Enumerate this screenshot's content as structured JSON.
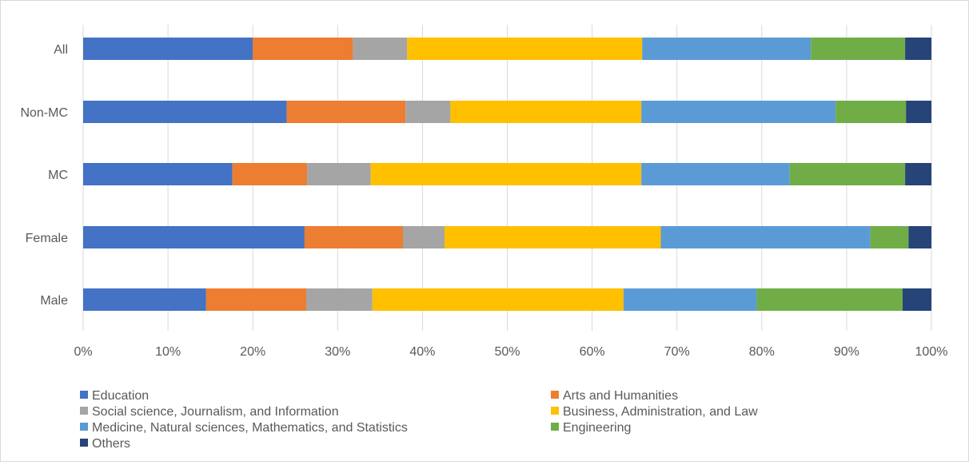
{
  "chart_data": {
    "type": "bar",
    "orientation": "horizontal",
    "stacked": "percent",
    "categories": [
      "All",
      "Non-MC",
      "MC",
      "Female",
      "Male"
    ],
    "series": [
      {
        "name": "Education",
        "color": "#4472C4",
        "values": [
          20.0,
          24.0,
          17.6,
          26.1,
          14.5
        ]
      },
      {
        "name": "Arts and Humanities",
        "color": "#ED7D31",
        "values": [
          11.8,
          14.0,
          8.8,
          11.6,
          11.8
        ]
      },
      {
        "name": "Social science, Journalism, and Information",
        "color": "#A5A5A5",
        "values": [
          6.4,
          5.3,
          7.5,
          4.9,
          7.8
        ]
      },
      {
        "name": "Business, Administration, and Law",
        "color": "#FFC000",
        "values": [
          27.7,
          22.5,
          31.9,
          25.5,
          29.6
        ]
      },
      {
        "name": "Medicine, Natural sciences, Mathematics, and Statistics",
        "color": "#5B9BD5",
        "values": [
          19.9,
          22.9,
          17.5,
          24.7,
          15.7
        ]
      },
      {
        "name": "Engineering",
        "color": "#70AD47",
        "values": [
          11.1,
          8.3,
          13.6,
          4.5,
          17.2
        ]
      },
      {
        "name": "Others",
        "color": "#264478",
        "values": [
          3.1,
          3.0,
          3.1,
          2.7,
          3.4
        ]
      }
    ],
    "x_ticks": [
      "0%",
      "10%",
      "20%",
      "30%",
      "40%",
      "50%",
      "60%",
      "70%",
      "80%",
      "90%",
      "100%"
    ],
    "xlim": [
      0,
      100
    ],
    "grid": "vertical",
    "legend": "bottom"
  }
}
